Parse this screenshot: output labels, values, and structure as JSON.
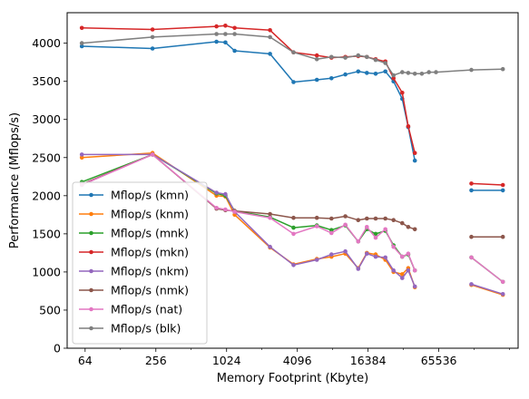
{
  "chart_data": {
    "type": "line",
    "xlabel": "Memory Footprint (Kbyte)",
    "ylabel": "Performance (Mflops/s)",
    "x_scale": "log2",
    "xlim": [
      45,
      310000
    ],
    "ylim": [
      0,
      4400
    ],
    "x_ticks": [
      64,
      256,
      1024,
      4096,
      16384,
      65536
    ],
    "x_tick_labels": [
      "64",
      "256",
      "1024",
      "4096",
      "16384",
      "65536"
    ],
    "y_ticks": [
      0,
      500,
      1000,
      1500,
      2000,
      2500,
      3000,
      3500,
      4000
    ],
    "y_tick_labels": [
      "0",
      "500",
      "1000",
      "1500",
      "2000",
      "2500",
      "3000",
      "3500",
      "4000"
    ],
    "grid": false,
    "legend_position": "lower-left",
    "x": [
      60,
      240,
      840,
      1000,
      1200,
      2400,
      3800,
      6000,
      8000,
      10500,
      13500,
      16000,
      19000,
      23000,
      27000,
      32000,
      36000,
      41000,
      47000,
      54000,
      62000,
      124000,
      230000
    ],
    "series": [
      {
        "name": "Mflop/s (kmn)",
        "color": "#1f77b4",
        "values": [
          3960,
          3930,
          4020,
          4010,
          3900,
          3860,
          3490,
          3520,
          3540,
          3590,
          3630,
          3610,
          3600,
          3630,
          3500,
          3270,
          2900,
          2460,
          null,
          null,
          null,
          2070,
          2070
        ]
      },
      {
        "name": "Mflop/s (knm)",
        "color": "#ff7f0e",
        "values": [
          2500,
          2560,
          2000,
          1990,
          1750,
          1320,
          1100,
          1170,
          1200,
          1240,
          1050,
          1250,
          1230,
          1160,
          1000,
          970,
          1050,
          800,
          null,
          null,
          null,
          830,
          700
        ]
      },
      {
        "name": "Mflop/s (mnk)",
        "color": "#2ca02c",
        "values": [
          2180,
          2540,
          2030,
          2000,
          1800,
          1720,
          1580,
          1610,
          1550,
          1610,
          1400,
          1560,
          1500,
          1540,
          1350,
          1200,
          1230,
          1020,
          null,
          null,
          null,
          1190,
          870
        ]
      },
      {
        "name": "Mflop/s (mkn)",
        "color": "#d62728",
        "values": [
          4200,
          4180,
          4220,
          4230,
          4200,
          4170,
          3880,
          3840,
          3810,
          3820,
          3830,
          3820,
          3790,
          3760,
          3540,
          3350,
          2910,
          2560,
          null,
          null,
          null,
          2160,
          2140
        ]
      },
      {
        "name": "Mflop/s (nkm)",
        "color": "#9467bd",
        "values": [
          2540,
          2540,
          2040,
          2020,
          1790,
          1330,
          1090,
          1160,
          1230,
          1270,
          1040,
          1240,
          1200,
          1190,
          1020,
          920,
          1020,
          810,
          null,
          null,
          null,
          840,
          710
        ]
      },
      {
        "name": "Mflop/s (nmk)",
        "color": "#8c564b",
        "values": [
          2150,
          2540,
          1830,
          1810,
          1800,
          1760,
          1710,
          1710,
          1700,
          1730,
          1680,
          1700,
          1700,
          1700,
          1680,
          1640,
          1590,
          1560,
          null,
          null,
          null,
          1460,
          1460
        ]
      },
      {
        "name": "Mflop/s (nat)",
        "color": "#e377c2",
        "values": [
          2140,
          2540,
          1840,
          1820,
          1790,
          1710,
          1500,
          1600,
          1510,
          1620,
          1400,
          1590,
          1450,
          1560,
          1330,
          1200,
          1240,
          1020,
          null,
          null,
          null,
          1190,
          870
        ]
      },
      {
        "name": "Mflop/s (blk)",
        "color": "#7f7f7f",
        "values": [
          4000,
          4080,
          4120,
          4120,
          4120,
          4080,
          3880,
          3790,
          3820,
          3810,
          3840,
          3820,
          3780,
          3740,
          3580,
          3620,
          3610,
          3600,
          3600,
          3620,
          3620,
          3650,
          3660
        ]
      }
    ]
  }
}
